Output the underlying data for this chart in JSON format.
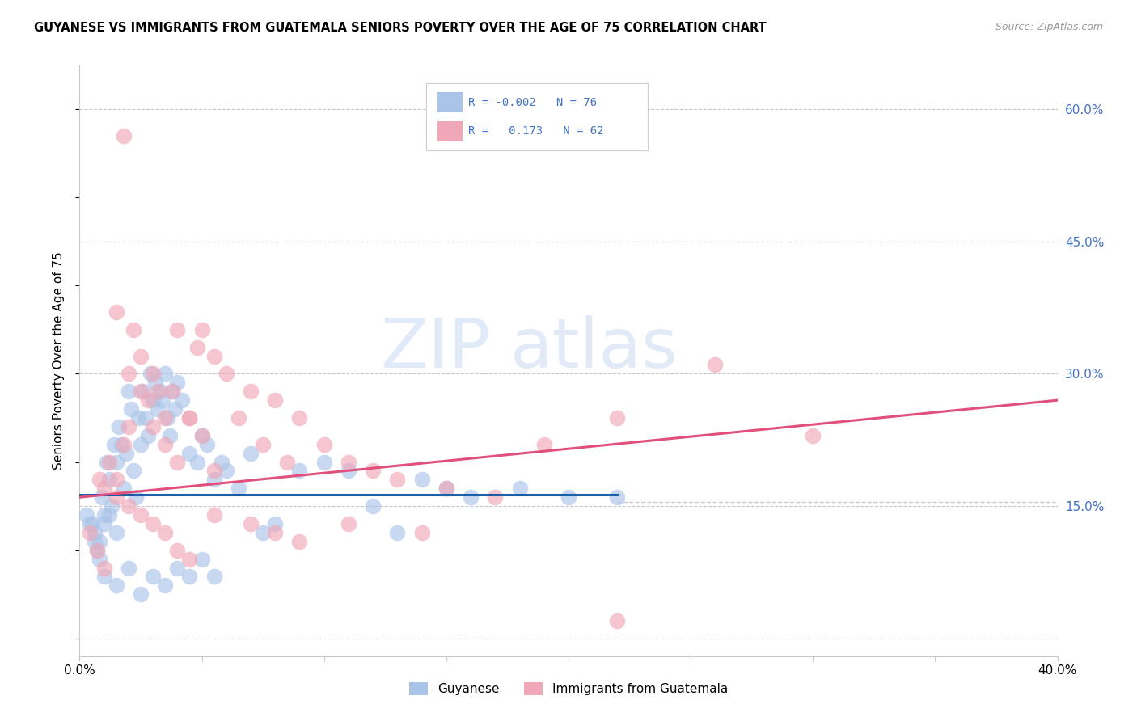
{
  "title": "GUYANESE VS IMMIGRANTS FROM GUATEMALA SENIORS POVERTY OVER THE AGE OF 75 CORRELATION CHART",
  "source": "Source: ZipAtlas.com",
  "ylabel": "Seniors Poverty Over the Age of 75",
  "xlim": [
    0.0,
    40.0
  ],
  "ylim": [
    -2.0,
    65.0
  ],
  "xticks": [
    0.0,
    5.0,
    10.0,
    15.0,
    20.0,
    25.0,
    30.0,
    35.0,
    40.0
  ],
  "xtick_labels": [
    "0.0%",
    "",
    "",
    "",
    "",
    "",
    "",
    "",
    "40.0%"
  ],
  "ytick_positions": [
    0.0,
    15.0,
    30.0,
    45.0,
    60.0
  ],
  "ytick_labels_right": [
    "",
    "15.0%",
    "30.0%",
    "45.0%",
    "60.0%"
  ],
  "color_blue": "#aac4e8",
  "color_pink": "#f0a8b8",
  "line_blue": "#1a5fa8",
  "line_pink": "#e0507a",
  "watermark_zip": "ZIP",
  "watermark_atlas": "atlas",
  "grid_color": "#c8c8c8",
  "blue_scatter_x": [
    0.3,
    0.5,
    0.6,
    0.7,
    0.8,
    0.9,
    1.0,
    1.1,
    1.2,
    1.3,
    1.4,
    1.5,
    1.6,
    1.7,
    1.8,
    1.9,
    2.0,
    2.1,
    2.2,
    2.3,
    2.4,
    2.5,
    2.6,
    2.7,
    2.8,
    2.9,
    3.0,
    3.1,
    3.2,
    3.3,
    3.4,
    3.5,
    3.6,
    3.7,
    3.8,
    3.9,
    4.0,
    4.2,
    4.5,
    4.8,
    5.0,
    5.2,
    5.5,
    5.8,
    6.0,
    6.5,
    7.0,
    7.5,
    8.0,
    9.0,
    10.0,
    11.0,
    12.0,
    13.0,
    14.0,
    15.0,
    16.0,
    18.0,
    20.0,
    22.0,
    1.0,
    1.5,
    2.0,
    2.5,
    3.0,
    3.5,
    4.0,
    4.5,
    5.0,
    5.5,
    0.4,
    0.6,
    0.8,
    1.0,
    1.2,
    1.5
  ],
  "blue_scatter_y": [
    14.0,
    13.0,
    11.0,
    10.0,
    9.0,
    16.0,
    14.0,
    20.0,
    18.0,
    15.0,
    22.0,
    20.0,
    24.0,
    22.0,
    17.0,
    21.0,
    28.0,
    26.0,
    19.0,
    16.0,
    25.0,
    22.0,
    28.0,
    25.0,
    23.0,
    30.0,
    27.0,
    29.0,
    26.0,
    28.0,
    27.0,
    30.0,
    25.0,
    23.0,
    28.0,
    26.0,
    29.0,
    27.0,
    21.0,
    20.0,
    23.0,
    22.0,
    18.0,
    20.0,
    19.0,
    17.0,
    21.0,
    12.0,
    13.0,
    19.0,
    20.0,
    19.0,
    15.0,
    12.0,
    18.0,
    17.0,
    16.0,
    17.0,
    16.0,
    16.0,
    7.0,
    6.0,
    8.0,
    5.0,
    7.0,
    6.0,
    8.0,
    7.0,
    9.0,
    7.0,
    13.0,
    12.0,
    11.0,
    13.0,
    14.0,
    12.0
  ],
  "pink_scatter_x": [
    0.4,
    0.7,
    1.0,
    1.2,
    1.5,
    1.8,
    2.0,
    2.2,
    2.5,
    2.8,
    3.0,
    3.2,
    3.5,
    3.8,
    4.0,
    4.5,
    4.8,
    5.0,
    5.5,
    6.0,
    6.5,
    7.0,
    7.5,
    8.0,
    8.5,
    9.0,
    10.0,
    11.0,
    12.0,
    13.0,
    15.0,
    17.0,
    19.0,
    22.0,
    26.0,
    30.0,
    1.5,
    2.0,
    2.5,
    3.0,
    3.5,
    4.0,
    4.5,
    5.0,
    5.5,
    0.8,
    1.0,
    1.5,
    2.0,
    2.5,
    3.0,
    3.5,
    4.0,
    4.5,
    5.5,
    7.0,
    8.0,
    9.0,
    11.0,
    14.0,
    22.0,
    1.8
  ],
  "pink_scatter_y": [
    12.0,
    10.0,
    8.0,
    20.0,
    18.0,
    22.0,
    24.0,
    35.0,
    32.0,
    27.0,
    30.0,
    28.0,
    25.0,
    28.0,
    35.0,
    25.0,
    33.0,
    35.0,
    32.0,
    30.0,
    25.0,
    28.0,
    22.0,
    27.0,
    20.0,
    25.0,
    22.0,
    20.0,
    19.0,
    18.0,
    17.0,
    16.0,
    22.0,
    25.0,
    31.0,
    23.0,
    37.0,
    30.0,
    28.0,
    24.0,
    22.0,
    20.0,
    25.0,
    23.0,
    19.0,
    18.0,
    17.0,
    16.0,
    15.0,
    14.0,
    13.0,
    12.0,
    10.0,
    9.0,
    14.0,
    13.0,
    12.0,
    11.0,
    13.0,
    12.0,
    2.0,
    57.0
  ],
  "blue_line_x": [
    0.0,
    22.0
  ],
  "blue_line_y": [
    16.3,
    16.3
  ],
  "pink_line_x": [
    0.0,
    40.0
  ],
  "pink_line_y": [
    16.0,
    27.0
  ],
  "hline_y": 15.5,
  "hline_x_start": 22.0,
  "hline_x_end": 40.0
}
